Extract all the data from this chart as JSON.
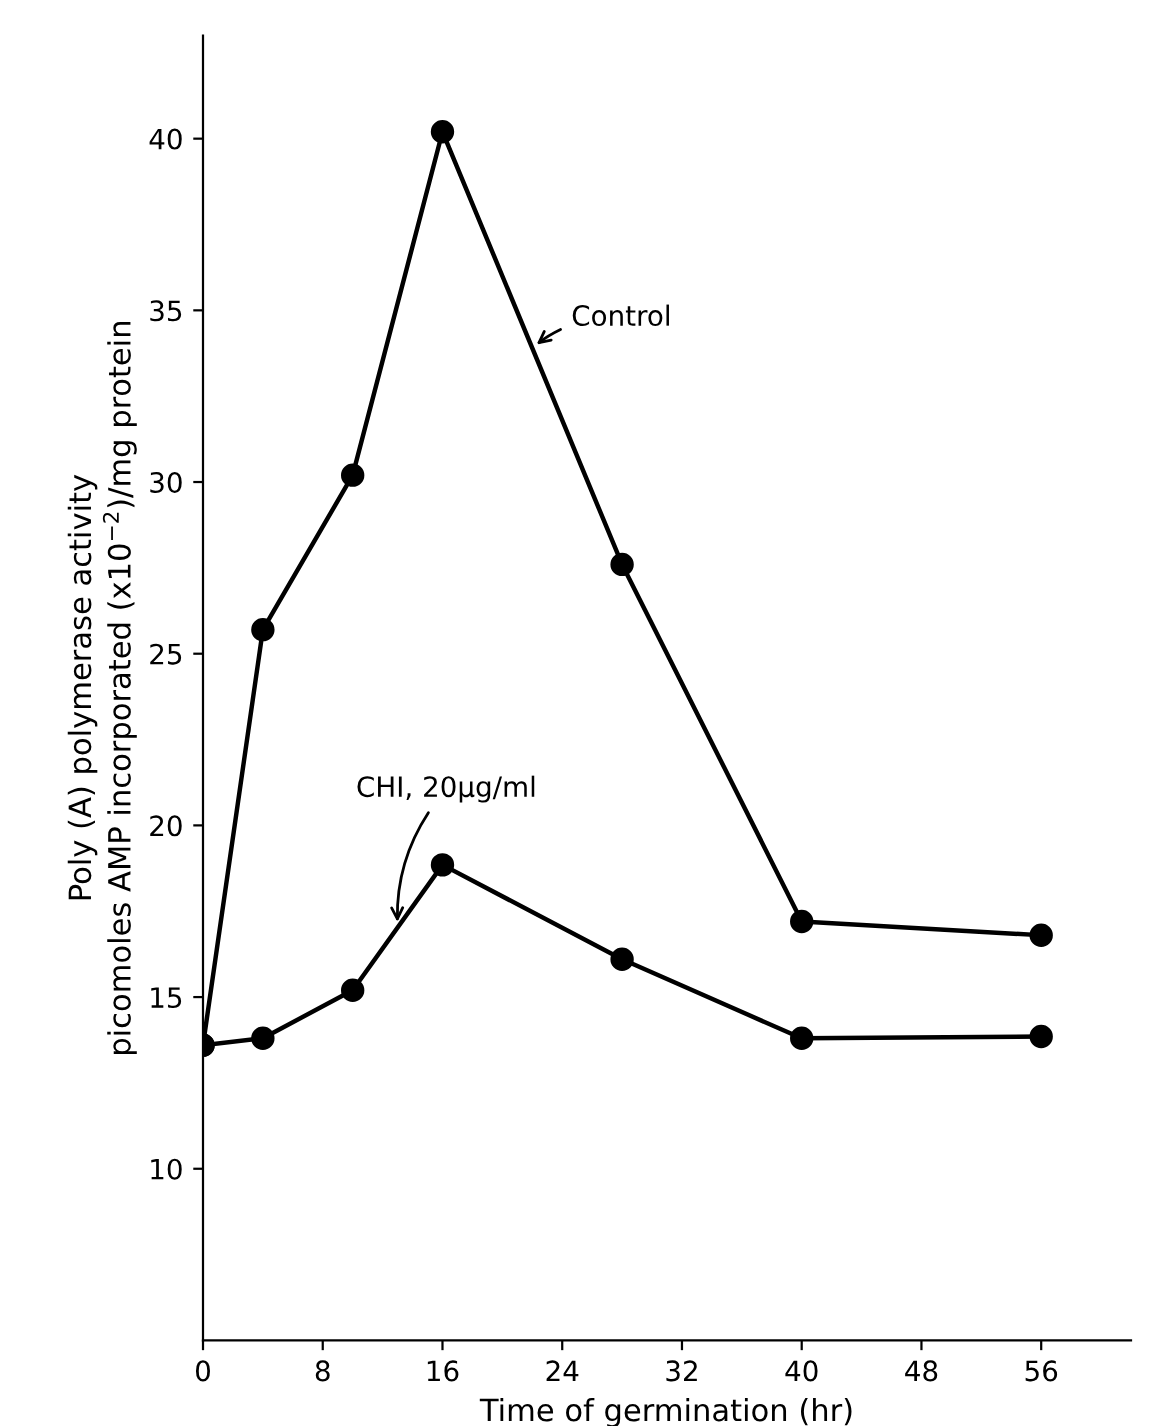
{
  "chart_data": {
    "type": "line",
    "xlabel": "Time of germination (hr)",
    "ylabel": "Poly (A) polymerase activity\npicomoles AMP incorporated (x10$^{−2}$)/mg protein",
    "x": [
      0,
      4,
      10,
      16,
      28,
      40,
      56
    ],
    "series": [
      {
        "name": "Control",
        "color": "#000000",
        "values": [
          13.6,
          25.7,
          30.2,
          40.2,
          27.6,
          17.2,
          16.8
        ]
      },
      {
        "name": "CHI, 20µg/ml",
        "color": "#000000",
        "values": [
          13.6,
          13.8,
          15.2,
          18.85,
          16.1,
          13.8,
          13.85
        ]
      }
    ],
    "xlim": [
      0,
      62
    ],
    "ylim": [
      5,
      43
    ],
    "xticks": [
      0,
      8,
      16,
      24,
      32,
      40,
      48,
      56
    ],
    "yticks": [
      10,
      15,
      20,
      25,
      30,
      35,
      40
    ],
    "marker": "circle",
    "line_style": "solid",
    "grid": false,
    "legend": false
  }
}
